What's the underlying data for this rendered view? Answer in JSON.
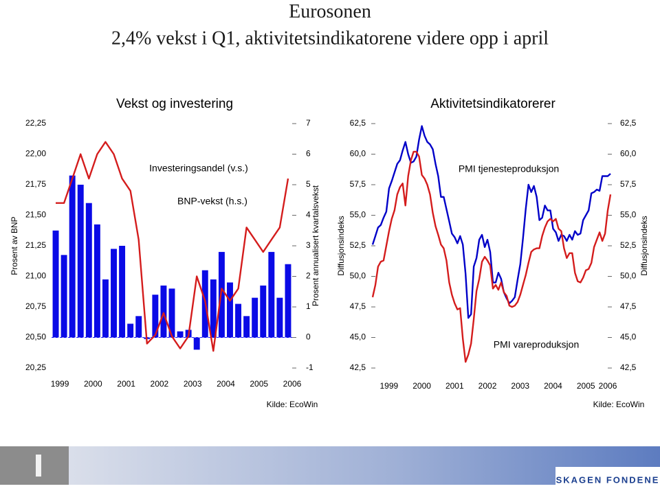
{
  "header": {
    "title": "Eurosonen",
    "subtitle": "2,4% vekst i Q1, aktivitetsindikatorene videre opp i april"
  },
  "chart_data": [
    {
      "type": "combo",
      "title": "Vekst og investering",
      "y_label": "Prosent av BNP",
      "y2_label": "Prosent annualisert kvartalsvekst",
      "source": "Kilde: EcoWin",
      "categories": [
        "1999",
        null,
        null,
        null,
        "2000",
        null,
        null,
        null,
        "2001",
        null,
        null,
        null,
        "2002",
        null,
        null,
        null,
        "2003",
        null,
        null,
        null,
        "2004",
        null,
        null,
        null,
        "2005",
        null,
        null,
        null,
        "2006"
      ],
      "ylim": [
        20.25,
        22.25
      ],
      "yticks": [
        {
          "value": 20.25,
          "label": "20,25"
        },
        {
          "value": 20.5,
          "label": "20,50"
        },
        {
          "value": 20.75,
          "label": "20,75"
        },
        {
          "value": 21.0,
          "label": "21,00"
        },
        {
          "value": 21.25,
          "label": "21,25"
        },
        {
          "value": 21.5,
          "label": "21,50"
        },
        {
          "value": 21.75,
          "label": "21,75"
        },
        {
          "value": 22.0,
          "label": "22,00"
        },
        {
          "value": 22.25,
          "label": "22,25"
        }
      ],
      "y2lim": [
        -1,
        7
      ],
      "y2ticks": [
        -1,
        0,
        1,
        2,
        3,
        4,
        5,
        6,
        7
      ],
      "series": [
        {
          "name": "BNP-vekst (h.s.)",
          "type": "bar",
          "axis": "y2",
          "color": "#0a0ae6",
          "values": [
            3.5,
            2.7,
            5.3,
            5.0,
            4.4,
            3.7,
            1.9,
            2.9,
            3.0,
            0.45,
            0.7,
            -0.05,
            1.4,
            1.7,
            1.6,
            0.2,
            0.25,
            -0.4,
            2.2,
            1.9,
            2.8,
            1.8,
            1.1,
            0.7,
            1.3,
            1.7,
            2.8,
            1.3,
            2.4
          ]
        },
        {
          "name": "Investeringsandel (v.s.)",
          "type": "line",
          "axis": "y",
          "color": "#d41c1c",
          "values": [
            21.6,
            21.6,
            21.8,
            22.0,
            21.8,
            22.0,
            22.1,
            22.0,
            21.8,
            21.7,
            21.3,
            20.45,
            20.52,
            20.7,
            20.51,
            20.41,
            20.51,
            21.0,
            20.8,
            20.39,
            20.9,
            20.8,
            20.9,
            21.4,
            21.3,
            21.2,
            21.3,
            21.4,
            21.8
          ]
        }
      ]
    },
    {
      "type": "line",
      "title": "Aktivitetsindikatorerer",
      "y_label": "Diffusjonsindeks",
      "y2_label": "Diffusjonsindeks",
      "source": "Kilde: EcoWin",
      "categories": [
        null,
        null,
        null,
        null,
        null,
        null,
        "1999",
        null,
        null,
        null,
        null,
        null,
        null,
        null,
        null,
        null,
        null,
        null,
        "2000",
        null,
        null,
        null,
        null,
        null,
        null,
        null,
        null,
        null,
        null,
        null,
        "2001",
        null,
        null,
        null,
        null,
        null,
        null,
        null,
        null,
        null,
        null,
        null,
        "2002",
        null,
        null,
        null,
        null,
        null,
        null,
        null,
        null,
        null,
        null,
        null,
        "2003",
        null,
        null,
        null,
        null,
        null,
        null,
        null,
        null,
        null,
        null,
        null,
        "2004",
        null,
        null,
        null,
        null,
        null,
        null,
        null,
        null,
        null,
        null,
        null,
        "2005",
        null,
        null,
        null,
        null,
        null,
        null,
        null,
        "2006",
        null
      ],
      "ylim": [
        42.5,
        62.5
      ],
      "yticks": [
        {
          "value": 42.5,
          "label": "42,5"
        },
        {
          "value": 45,
          "label": "45,0"
        },
        {
          "value": 47.5,
          "label": "47,5"
        },
        {
          "value": 50,
          "label": "50,0"
        },
        {
          "value": 52.5,
          "label": "52,5"
        },
        {
          "value": 55,
          "label": "55,0"
        },
        {
          "value": 57.5,
          "label": "57,5"
        },
        {
          "value": 60,
          "label": "60,0"
        },
        {
          "value": 62.5,
          "label": "62,5"
        }
      ],
      "series": [
        {
          "name": "PMI tjenesteproduksjon",
          "color": "#0000c8",
          "values": [
            52.6,
            53.3,
            54.0,
            54.2,
            54.8,
            55.3,
            57.2,
            57.8,
            58.5,
            59.2,
            59.5,
            60.3,
            61.0,
            60.0,
            59.3,
            59.4,
            59.8,
            61.2,
            62.3,
            61.5,
            61.0,
            60.8,
            60.4,
            59.2,
            58.2,
            56.5,
            56.5,
            55.5,
            54.5,
            53.5,
            53.2,
            52.7,
            53.3,
            52.6,
            50.2,
            46.6,
            46.9,
            50.8,
            51.5,
            53.0,
            53.4,
            52.4,
            53.0,
            52.0,
            49.5,
            49.5,
            50.3,
            49.8,
            48.7,
            48.2,
            47.8,
            48.0,
            48.3,
            49.7,
            51.0,
            53.1,
            55.5,
            57.5,
            56.9,
            57.4,
            56.5,
            54.6,
            54.8,
            55.8,
            55.4,
            55.4,
            53.9,
            53.6,
            52.9,
            53.4,
            53.3,
            52.9,
            53.4,
            53.0,
            53.7,
            53.4,
            53.5,
            54.6,
            55.0,
            55.4,
            56.8,
            56.9,
            57.1,
            57.0,
            58.2,
            58.2,
            58.2,
            58.4
          ]
        },
        {
          "name": "PMI vareproduksjon",
          "color": "#d41c1c",
          "values": [
            48.3,
            49.3,
            50.8,
            51.2,
            51.3,
            52.5,
            53.7,
            54.7,
            55.4,
            56.7,
            57.3,
            57.6,
            55.8,
            58.2,
            59.5,
            60.2,
            60.2,
            59.8,
            58.3,
            58.0,
            57.5,
            56.7,
            55.2,
            54.1,
            53.4,
            52.6,
            52.3,
            51.3,
            49.5,
            48.5,
            47.8,
            47.3,
            47.4,
            44.9,
            43.0,
            43.6,
            44.5,
            46.5,
            48.8,
            49.8,
            51.2,
            51.6,
            51.3,
            50.9,
            49.0,
            49.3,
            48.9,
            49.5,
            48.7,
            48.4,
            47.6,
            47.5,
            47.6,
            47.9,
            48.5,
            49.3,
            50.1,
            51.1,
            52.0,
            52.2,
            52.3,
            52.3,
            53.3,
            54.0,
            54.5,
            54.7,
            54.5,
            54.7,
            53.9,
            53.7,
            52.3,
            51.5,
            51.9,
            51.9,
            50.3,
            49.6,
            49.5,
            49.9,
            50.5,
            50.6,
            51.1,
            52.4,
            53.0,
            53.6,
            52.9,
            53.5,
            55.4,
            56.7
          ]
        }
      ]
    }
  ],
  "footer": {
    "logo": "SKAGEN FONDENE"
  }
}
